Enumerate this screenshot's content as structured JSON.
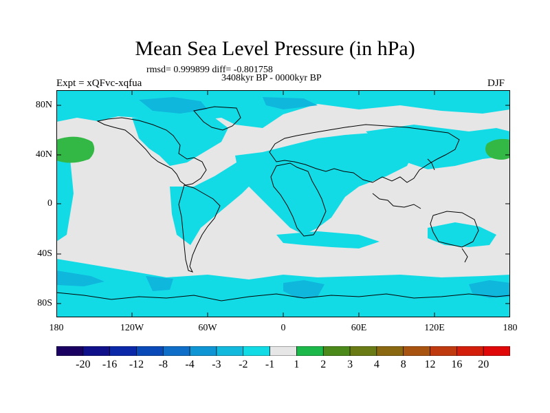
{
  "title": "Mean Sea Level Pressure (in hPa)",
  "stats": "rmsd= 0.999899 diff= -0.801758",
  "period": "3408kyr BP - 0000kyr BP",
  "experiment": "Expt = xQFvc-xqfua",
  "season": "DJF",
  "colors": {
    "land_neutral": "#e6e6e6",
    "negative_1": "#13dbe6",
    "negative_2": "#0fb7dc",
    "positive_1": "#33b845",
    "coast": "#000000"
  },
  "axes": {
    "lat_labels": [
      "80N",
      "40N",
      "0",
      "40S",
      "80S"
    ],
    "lon_labels": [
      "180",
      "120W",
      "60W",
      "0",
      "60E",
      "120E",
      "180"
    ]
  },
  "colorbar": {
    "colors": [
      "#1a0060",
      "#10108a",
      "#0a28a8",
      "#0a4ab8",
      "#0f6ec8",
      "#0f94d4",
      "#13b9dc",
      "#13dbe6",
      "#e6e6e6",
      "#1db84a",
      "#4b8a1a",
      "#6a7a14",
      "#8a6812",
      "#a85410",
      "#c03a10",
      "#d41e0c",
      "#e00808"
    ],
    "labels": [
      "-20",
      "-16",
      "-12",
      "-8",
      "-4",
      "-3",
      "-2",
      "-1",
      "1",
      "2",
      "3",
      "4",
      "8",
      "12",
      "16",
      "20"
    ]
  }
}
